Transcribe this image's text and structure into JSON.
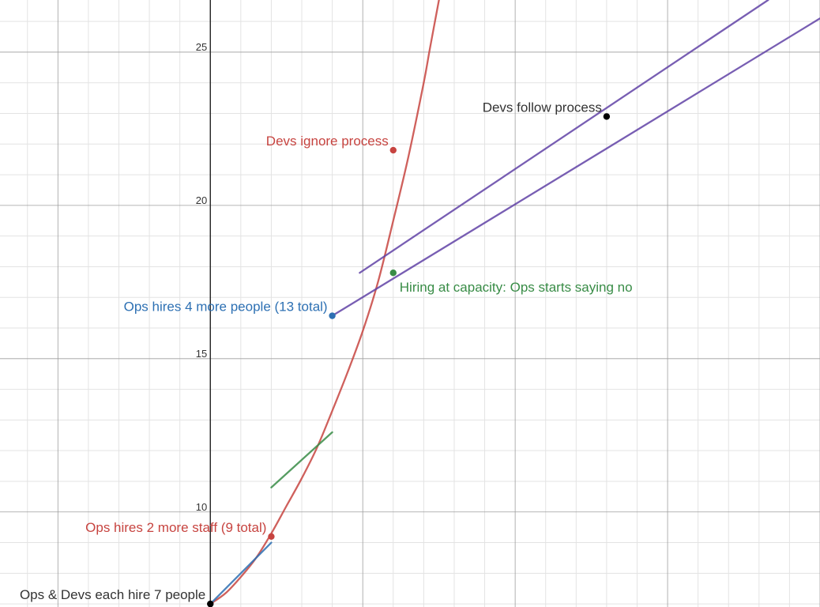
{
  "chart_data": {
    "type": "line",
    "grid": true,
    "xlim": [
      -6.9,
      20.0
    ],
    "ylim": [
      6.9,
      26.7
    ],
    "y_ticks": [
      {
        "value": 10,
        "label": "10"
      },
      {
        "value": 15,
        "label": "15"
      },
      {
        "value": 20,
        "label": "20"
      },
      {
        "value": 25,
        "label": "25"
      }
    ],
    "series": [
      {
        "color": "#c74440",
        "kind": "curve",
        "points": [
          [
            0,
            7.0
          ],
          [
            0.5,
            7.35
          ],
          [
            1,
            7.88
          ],
          [
            1.5,
            8.5
          ],
          [
            2,
            9.3
          ],
          [
            2.5,
            10.2
          ],
          [
            3,
            11.1
          ],
          [
            3.5,
            12.1
          ],
          [
            4,
            13.3
          ],
          [
            4.5,
            14.55
          ],
          [
            5,
            15.9
          ],
          [
            5.5,
            17.5
          ],
          [
            6,
            19.5
          ],
          [
            6.5,
            21.6
          ],
          [
            7,
            24.0
          ],
          [
            7.2,
            25.1
          ],
          [
            7.5,
            26.7
          ]
        ]
      },
      {
        "color": "#2d70b3",
        "kind": "line",
        "points": [
          [
            0,
            7.0
          ],
          [
            2,
            9.0
          ]
        ]
      },
      {
        "color": "#388c46",
        "kind": "line",
        "points": [
          [
            2,
            10.8
          ],
          [
            4,
            12.6
          ]
        ]
      },
      {
        "color": "#6042a6",
        "kind": "line",
        "points": [
          [
            4,
            16.4
          ],
          [
            20,
            26.1
          ]
        ]
      },
      {
        "color": "#6042a6",
        "kind": "line",
        "points": [
          [
            4.9,
            17.8
          ],
          [
            18.3,
            26.7
          ]
        ]
      }
    ],
    "points": [
      {
        "x": 0,
        "y": 7.0,
        "color": "#000000",
        "label": "Ops & Devs each hire 7 people",
        "label_color": "#333333"
      },
      {
        "x": 2,
        "y": 9.2,
        "color": "#c74440",
        "label": "Ops hires 2 more staff (9 total)",
        "label_color": "#c74440"
      },
      {
        "x": 4,
        "y": 16.4,
        "color": "#2d70b3",
        "label": "Ops hires 4 more people (13 total)",
        "label_color": "#2d70b3"
      },
      {
        "x": 6,
        "y": 21.8,
        "color": "#c74440",
        "label": "Devs ignore process",
        "label_color": "#c74440"
      },
      {
        "x": 6,
        "y": 17.8,
        "color": "#388c46",
        "label": "Hiring at capacity: Ops starts saying no",
        "label_color": "#388c46"
      },
      {
        "x": 13,
        "y": 22.9,
        "color": "#000000",
        "label": "Devs follow process",
        "label_color": "#333333"
      }
    ]
  }
}
